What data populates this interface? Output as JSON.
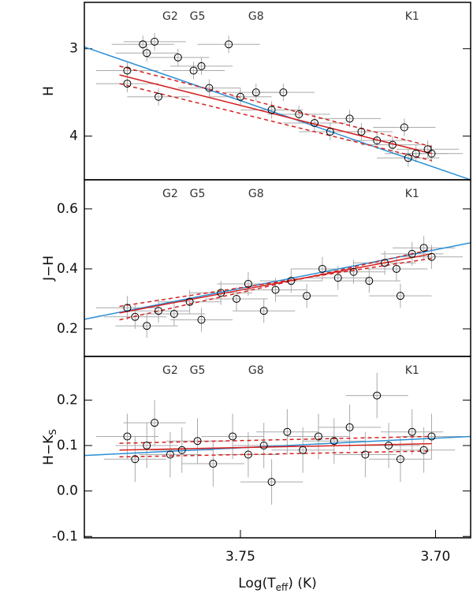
{
  "chart_data": [
    {
      "type": "scatter",
      "ylabel": "H",
      "xlim": [
        3.79,
        3.691
      ],
      "ylim": [
        4.5,
        2.47
      ],
      "yticks": [
        3,
        4
      ],
      "xerr": 0.008,
      "yerr": 0.1,
      "marker_color": "#000000",
      "error_color": "#aaaaaa",
      "annotations": [
        {
          "text": "G2",
          "x": 3.768
        },
        {
          "text": "G5",
          "x": 3.761
        },
        {
          "text": "G8",
          "x": 3.746
        },
        {
          "text": "K1",
          "x": 3.706
        }
      ],
      "x": [
        3.779,
        3.779,
        3.775,
        3.774,
        3.772,
        3.771,
        3.766,
        3.762,
        3.76,
        3.758,
        3.753,
        3.75,
        3.746,
        3.742,
        3.739,
        3.735,
        3.731,
        3.727,
        3.722,
        3.719,
        3.715,
        3.711,
        3.708,
        3.705,
        3.702,
        3.701,
        3.707
      ],
      "values": [
        3.25,
        3.4,
        2.95,
        3.05,
        2.92,
        3.55,
        3.1,
        3.25,
        3.2,
        3.45,
        2.95,
        3.55,
        3.5,
        3.7,
        3.5,
        3.75,
        3.85,
        3.95,
        3.8,
        3.95,
        4.05,
        4.1,
        3.9,
        4.2,
        4.15,
        4.2,
        4.25
      ],
      "fit_lines": [
        {
          "color": "#2a8fd6",
          "dash": false,
          "x": [
            3.79,
            3.691
          ],
          "y": [
            2.98,
            4.5
          ]
        },
        {
          "color": "#d62020",
          "dash": false,
          "x": [
            3.781,
            3.701
          ],
          "y": [
            3.3,
            4.2
          ]
        },
        {
          "color": "#d62020",
          "dash": true,
          "x": [
            3.781,
            3.701
          ],
          "y": [
            3.2,
            4.12
          ]
        },
        {
          "color": "#d62020",
          "dash": true,
          "x": [
            3.781,
            3.701
          ],
          "y": [
            3.4,
            4.28
          ]
        }
      ]
    },
    {
      "type": "scatter",
      "ylabel": "J−H",
      "xlim": [
        3.79,
        3.691
      ],
      "ylim": [
        0.108,
        0.697
      ],
      "yticks": [
        0.2,
        0.4,
        0.6
      ],
      "xerr": 0.008,
      "yerr": 0.04,
      "marker_color": "#000000",
      "error_color": "#aaaaaa",
      "annotations": [
        {
          "text": "G2",
          "x": 3.768
        },
        {
          "text": "G5",
          "x": 3.761
        },
        {
          "text": "G8",
          "x": 3.746
        },
        {
          "text": "K1",
          "x": 3.706
        }
      ],
      "x": [
        3.779,
        3.777,
        3.774,
        3.771,
        3.767,
        3.763,
        3.76,
        3.755,
        3.751,
        3.748,
        3.744,
        3.741,
        3.737,
        3.733,
        3.729,
        3.725,
        3.721,
        3.717,
        3.713,
        3.71,
        3.706,
        3.703,
        3.701,
        3.709
      ],
      "values": [
        0.27,
        0.24,
        0.21,
        0.26,
        0.25,
        0.29,
        0.23,
        0.32,
        0.3,
        0.35,
        0.26,
        0.33,
        0.36,
        0.31,
        0.4,
        0.37,
        0.39,
        0.36,
        0.42,
        0.4,
        0.45,
        0.47,
        0.44,
        0.31
      ],
      "fit_lines": [
        {
          "color": "#2a8fd6",
          "dash": false,
          "x": [
            3.79,
            3.691
          ],
          "y": [
            0.232,
            0.487
          ]
        },
        {
          "color": "#d62020",
          "dash": false,
          "x": [
            3.781,
            3.701
          ],
          "y": [
            0.253,
            0.45
          ]
        },
        {
          "color": "#d62020",
          "dash": true,
          "x": [
            3.781,
            3.701
          ],
          "y": [
            0.275,
            0.435
          ]
        },
        {
          "color": "#d62020",
          "dash": true,
          "x": [
            3.781,
            3.701
          ],
          "y": [
            0.23,
            0.465
          ]
        }
      ]
    },
    {
      "type": "scatter",
      "ylabel": {
        "main": "H−K",
        "sub": "S"
      },
      "xlim": [
        3.79,
        3.691
      ],
      "ylim": [
        -0.103,
        0.296
      ],
      "yticks": [
        -0.1,
        {
          "value": 0,
          "label": "0.0"
        },
        0.1,
        0.2
      ],
      "xticks": [
        3.75,
        {
          "value": 3.7,
          "label": "3.70"
        }
      ],
      "xlabel": [
        "Log(T",
        "eff",
        ") (K)"
      ],
      "xerr": 0.008,
      "yerr": 0.05,
      "marker_color": "#000000",
      "error_color": "#aaaaaa",
      "annotations": [
        {
          "text": "G2",
          "x": 3.768
        },
        {
          "text": "G5",
          "x": 3.761
        },
        {
          "text": "G8",
          "x": 3.746
        },
        {
          "text": "K1",
          "x": 3.706
        }
      ],
      "x": [
        3.779,
        3.777,
        3.774,
        3.772,
        3.768,
        3.765,
        3.761,
        3.757,
        3.752,
        3.748,
        3.744,
        3.742,
        3.738,
        3.734,
        3.73,
        3.726,
        3.722,
        3.718,
        3.715,
        3.712,
        3.709,
        3.706,
        3.703,
        3.701
      ],
      "values": [
        0.12,
        0.07,
        0.1,
        0.15,
        0.08,
        0.09,
        0.11,
        0.06,
        0.12,
        0.08,
        0.1,
        0.02,
        0.13,
        0.09,
        0.12,
        0.11,
        0.14,
        0.08,
        0.21,
        0.1,
        0.07,
        0.13,
        0.09,
        0.12
      ],
      "fit_lines": [
        {
          "color": "#2a8fd6",
          "dash": false,
          "x": [
            3.79,
            3.691
          ],
          "y": [
            0.078,
            0.12
          ]
        },
        {
          "color": "#d62020",
          "dash": false,
          "x": [
            3.781,
            3.701
          ],
          "y": [
            0.09,
            0.104
          ]
        },
        {
          "color": "#d62020",
          "dash": true,
          "x": [
            3.781,
            3.701
          ],
          "y": [
            0.105,
            0.12
          ]
        },
        {
          "color": "#d62020",
          "dash": true,
          "x": [
            3.781,
            3.701
          ],
          "y": [
            0.075,
            0.088
          ]
        }
      ]
    }
  ]
}
